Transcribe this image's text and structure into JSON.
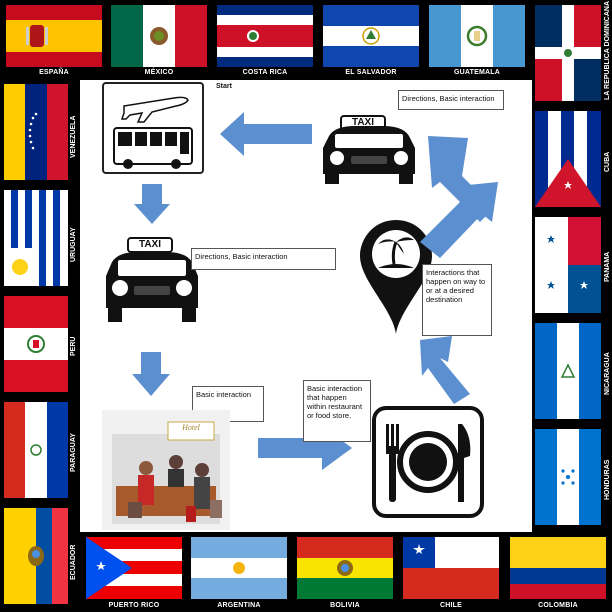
{
  "flags": {
    "espana": "ESPAÑA",
    "mexico": "MÉXICO",
    "costa_rica": "COSTA RICA",
    "el_salvador": "EL SALVADOR",
    "guatemala": "GUATEMALA",
    "republica_dominicana": "LA REPUBLICA DOMINICANA",
    "cuba": "CUBA",
    "panama": "PANAMA",
    "nicaragua": "NICARAGUA",
    "honduras": "HONDURAS",
    "venezuela": "VENEZUELA",
    "uruguay": "URUGUAY",
    "peru": "PERU",
    "paraguay": "PARAGUAY",
    "ecuador": "ECUADOR",
    "puerto_rico": "PUERTO RICO",
    "argentina": "ARGENTINA",
    "bolivia": "BOLIVIA",
    "chile": "CHILE",
    "colombia": "COLOMBIA"
  },
  "diagram": {
    "start_label": "Start",
    "taxi_sign": "TAXI",
    "hotel_sign": "Hotel",
    "note_taxi_top": "Directions, Basic interaction",
    "note_taxi_left": "Directions, Basic interaction",
    "note_hotel": "Basic interaction",
    "note_restaurant": "Basic interaction that happen within restaurant or food store.",
    "note_destination": "Interactions that happen on way to or at a desired destination"
  },
  "colors": {
    "arrow": "#5b8fd0",
    "background": "#000000",
    "panel": "#ffffff"
  }
}
